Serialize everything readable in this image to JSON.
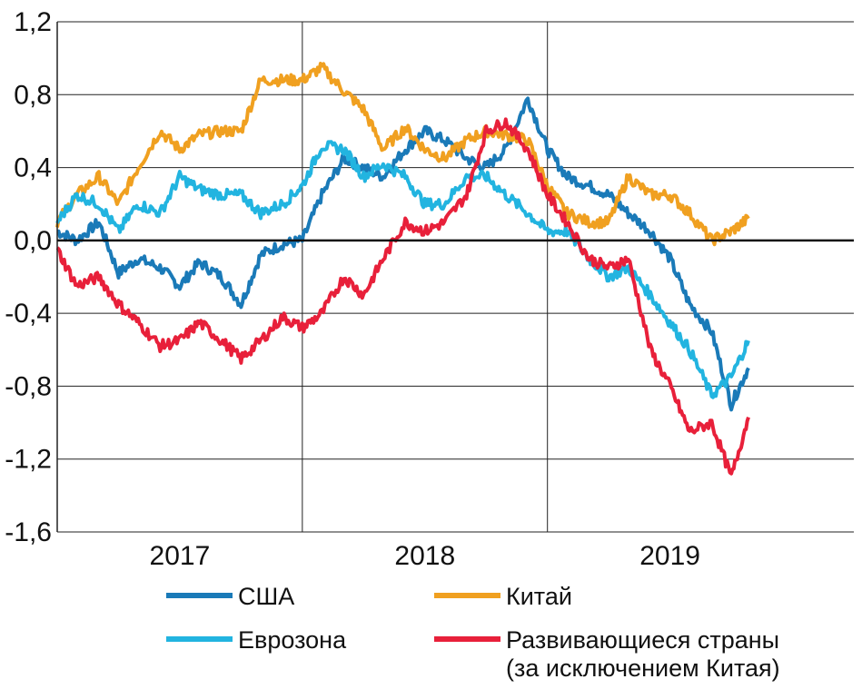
{
  "chart_data": {
    "type": "line",
    "title": "",
    "xlabel": "",
    "ylabel": "",
    "ylim": [
      -1.6,
      1.2
    ],
    "yticks": [
      "1,2",
      "0,8",
      "0,4",
      "0,0",
      "-0,4",
      "-0,8",
      "-1,2",
      "-1,6"
    ],
    "ytick_values": [
      1.2,
      0.8,
      0.4,
      0.0,
      -0.4,
      -0.8,
      -1.2,
      -1.6
    ],
    "xlim": [
      2016.5,
      2019.75
    ],
    "xtick_labels": [
      "2017",
      "2018",
      "2019"
    ],
    "xtick_label_positions": [
      2017.0,
      2018.0,
      2019.0
    ],
    "vertical_gridlines": [
      2017.5,
      2018.5
    ],
    "grid": true,
    "zero_line": true,
    "legend_position": "bottom",
    "series": [
      {
        "name": "США",
        "color": "#1a7ab8",
        "x": [
          2016.5,
          2016.58,
          2016.67,
          2016.75,
          2016.83,
          2016.92,
          2017.0,
          2017.08,
          2017.17,
          2017.25,
          2017.33,
          2017.42,
          2017.5,
          2017.58,
          2017.67,
          2017.75,
          2017.83,
          2017.92,
          2018.0,
          2018.08,
          2018.17,
          2018.25,
          2018.33,
          2018.42,
          2018.5,
          2018.58,
          2018.67,
          2018.75,
          2018.83,
          2018.92,
          2019.0,
          2019.08,
          2019.17,
          2019.25,
          2019.32
        ],
        "values": [
          0.05,
          0.0,
          0.1,
          -0.18,
          -0.1,
          -0.15,
          -0.25,
          -0.12,
          -0.2,
          -0.35,
          -0.08,
          -0.02,
          0.0,
          0.25,
          0.45,
          0.4,
          0.35,
          0.5,
          0.6,
          0.55,
          0.45,
          0.4,
          0.5,
          0.78,
          0.5,
          0.35,
          0.3,
          0.25,
          0.15,
          0.05,
          -0.1,
          -0.35,
          -0.5,
          -0.9,
          -0.7
        ]
      },
      {
        "name": "Китай",
        "color": "#f0a020",
        "x": [
          2016.5,
          2016.58,
          2016.67,
          2016.75,
          2016.83,
          2016.92,
          2017.0,
          2017.08,
          2017.17,
          2017.25,
          2017.33,
          2017.42,
          2017.5,
          2017.58,
          2017.67,
          2017.75,
          2017.83,
          2017.92,
          2018.0,
          2018.08,
          2018.17,
          2018.25,
          2018.33,
          2018.42,
          2018.5,
          2018.58,
          2018.67,
          2018.75,
          2018.83,
          2018.92,
          2019.0,
          2019.08,
          2019.17,
          2019.25,
          2019.32
        ],
        "values": [
          0.1,
          0.25,
          0.35,
          0.2,
          0.4,
          0.6,
          0.5,
          0.58,
          0.6,
          0.6,
          0.88,
          0.88,
          0.88,
          0.95,
          0.82,
          0.72,
          0.5,
          0.62,
          0.5,
          0.45,
          0.55,
          0.6,
          0.58,
          0.55,
          0.3,
          0.15,
          0.1,
          0.1,
          0.35,
          0.25,
          0.25,
          0.15,
          0.0,
          0.05,
          0.12
        ]
      },
      {
        "name": "Еврозона",
        "color": "#22b4e0",
        "x": [
          2016.5,
          2016.58,
          2016.67,
          2016.75,
          2016.83,
          2016.92,
          2017.0,
          2017.08,
          2017.17,
          2017.25,
          2017.33,
          2017.42,
          2017.5,
          2017.58,
          2017.67,
          2017.75,
          2017.83,
          2017.92,
          2018.0,
          2018.08,
          2018.17,
          2018.25,
          2018.33,
          2018.42,
          2018.5,
          2018.58,
          2018.67,
          2018.75,
          2018.83,
          2018.92,
          2019.0,
          2019.08,
          2019.17,
          2019.25,
          2019.32
        ],
        "values": [
          0.1,
          0.25,
          0.2,
          0.05,
          0.2,
          0.15,
          0.35,
          0.28,
          0.25,
          0.25,
          0.15,
          0.2,
          0.3,
          0.52,
          0.5,
          0.35,
          0.42,
          0.35,
          0.2,
          0.2,
          0.35,
          0.35,
          0.25,
          0.15,
          0.05,
          0.05,
          -0.1,
          -0.2,
          -0.15,
          -0.3,
          -0.45,
          -0.6,
          -0.85,
          -0.75,
          -0.55
        ]
      },
      {
        "name": "Развивающиеся страны (за исключением  Китая)",
        "color": "#e8203a",
        "x": [
          2016.5,
          2016.58,
          2016.67,
          2016.75,
          2016.83,
          2016.92,
          2017.0,
          2017.08,
          2017.17,
          2017.25,
          2017.33,
          2017.42,
          2017.5,
          2017.58,
          2017.67,
          2017.75,
          2017.83,
          2017.92,
          2018.0,
          2018.08,
          2018.17,
          2018.25,
          2018.33,
          2018.42,
          2018.5,
          2018.58,
          2018.67,
          2018.75,
          2018.83,
          2018.92,
          2019.0,
          2019.08,
          2019.17,
          2019.25,
          2019.32
        ],
        "values": [
          -0.05,
          -0.25,
          -0.2,
          -0.35,
          -0.45,
          -0.58,
          -0.55,
          -0.45,
          -0.55,
          -0.65,
          -0.55,
          -0.42,
          -0.48,
          -0.4,
          -0.2,
          -0.3,
          -0.1,
          0.1,
          0.05,
          0.1,
          0.25,
          0.6,
          0.65,
          0.5,
          0.25,
          0.1,
          -0.1,
          -0.15,
          -0.1,
          -0.6,
          -0.8,
          -1.05,
          -1.0,
          -1.3,
          -0.97
        ]
      }
    ]
  },
  "legend": {
    "usa": "США",
    "china": "Китай",
    "eurozone": "Еврозона",
    "em_line1": "Развивающиеся страны",
    "em_line2": "(за исключением  Китая)"
  }
}
